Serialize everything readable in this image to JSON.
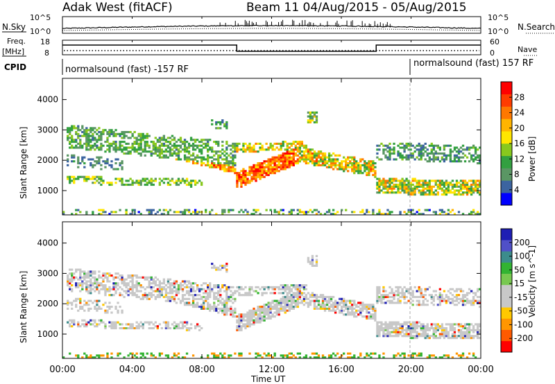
{
  "header": {
    "station": "Adak West (fitACF)",
    "beam_info": "Beam 11 04/Aug/2015 - 05/Aug/2015"
  },
  "panels": {
    "nsky_label": "N.Sky",
    "nsearch_label": "N.Search",
    "nsky_ticks": [
      "10^5",
      "10^0"
    ],
    "nsearch_ticks": [
      "10^5",
      "10^0"
    ],
    "freq_label_1": "Freq.",
    "freq_label_2": "[MHz]",
    "freq_ticks": [
      "18",
      "8"
    ],
    "nave_label": "Nave",
    "nave_ticks": [
      "60",
      "0"
    ],
    "cpid_label": "CPID",
    "cpid_left": "normalsound (fast) -157 RF",
    "cpid_right": "normalsound (fast) 157 RF"
  },
  "colors": {
    "power": [
      "#0000ff",
      "#3c64a0",
      "#5a9664",
      "#32a040",
      "#88c81e",
      "#ffe600",
      "#ffb400",
      "#ff7800",
      "#ff3c00",
      "#ff0000"
    ],
    "velocity": [
      "#ff0000",
      "#ff5a00",
      "#ff9600",
      "#ffc800",
      "#c8c8c8",
      "#c8c8c8",
      "#78c850",
      "#32b432",
      "#3c8c8c",
      "#5050c8",
      "#1e1eb4"
    ]
  },
  "chart_data": [
    {
      "type": "heatmap",
      "name": "power",
      "ylabel": "Slant Range [km]",
      "yticks": [
        "4000",
        "3000",
        "2000",
        "1000"
      ],
      "ylim": [
        200,
        4700
      ],
      "colorbar_label": "Power [dB]",
      "colorbar_ticks": [
        "28",
        "24",
        "20",
        "16",
        "12",
        "8",
        "4"
      ],
      "clim": [
        0,
        32
      ]
    },
    {
      "type": "heatmap",
      "name": "velocity",
      "ylabel": "Slant Range [km]",
      "yticks": [
        "4000",
        "3000",
        "2000",
        "1000"
      ],
      "ylim": [
        200,
        4700
      ],
      "colorbar_label": "Velocity [m s^-1]",
      "colorbar_ticks": [
        "200",
        "100",
        "50",
        "15",
        "-15",
        "-50",
        "-100",
        "-200"
      ]
    }
  ],
  "x_axis": {
    "label": "Time UT",
    "ticks": [
      "00:00",
      "04:00",
      "08:00",
      "12:00",
      "16:00",
      "20:00",
      "00:00"
    ],
    "range_hours": [
      0,
      24
    ]
  }
}
